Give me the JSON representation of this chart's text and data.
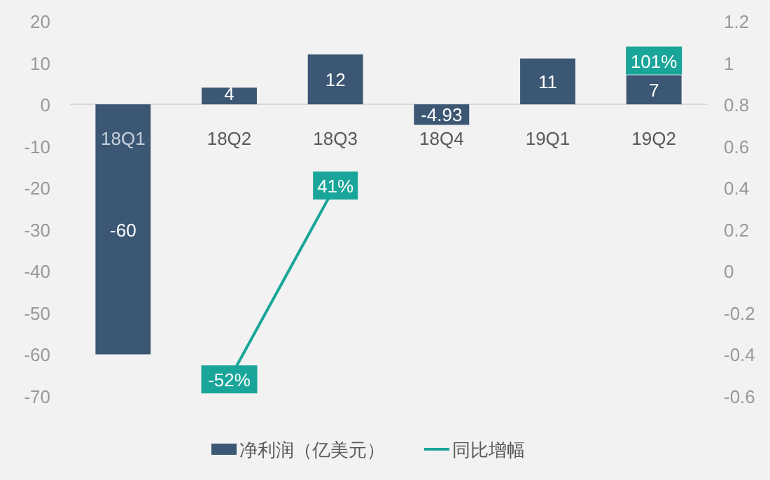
{
  "chart_data": {
    "type": "bar",
    "categories": [
      "18Q1",
      "18Q2",
      "18Q3",
      "18Q4",
      "19Q1",
      "19Q2"
    ],
    "series": [
      {
        "name": "净利润（亿美元）",
        "color": "#3b5773",
        "values": [
          -60,
          4,
          12,
          -4.93,
          11,
          7
        ],
        "value_labels": [
          "-60",
          "4",
          "12",
          "-4.93",
          "11",
          "7"
        ]
      },
      {
        "name": "同比增幅",
        "type": "line",
        "axis": "y2",
        "color": "#1aa59a",
        "marker": "square",
        "values": [
          null,
          -0.52,
          0.41,
          null,
          null,
          1.01
        ],
        "value_labels": [
          null,
          "-52%",
          "41%",
          null,
          null,
          "101%"
        ]
      }
    ],
    "ylim": [
      -70,
      20
    ],
    "yticks": [
      -70,
      -60,
      -50,
      -40,
      -30,
      -20,
      -10,
      0,
      10,
      20
    ],
    "y2lim": [
      -0.6,
      1.2
    ],
    "y2ticks": [
      -0.6,
      -0.4,
      -0.2,
      0,
      0.2,
      0.4,
      0.6,
      0.8,
      1,
      1.2
    ],
    "legend": "bottom",
    "grid": false
  }
}
